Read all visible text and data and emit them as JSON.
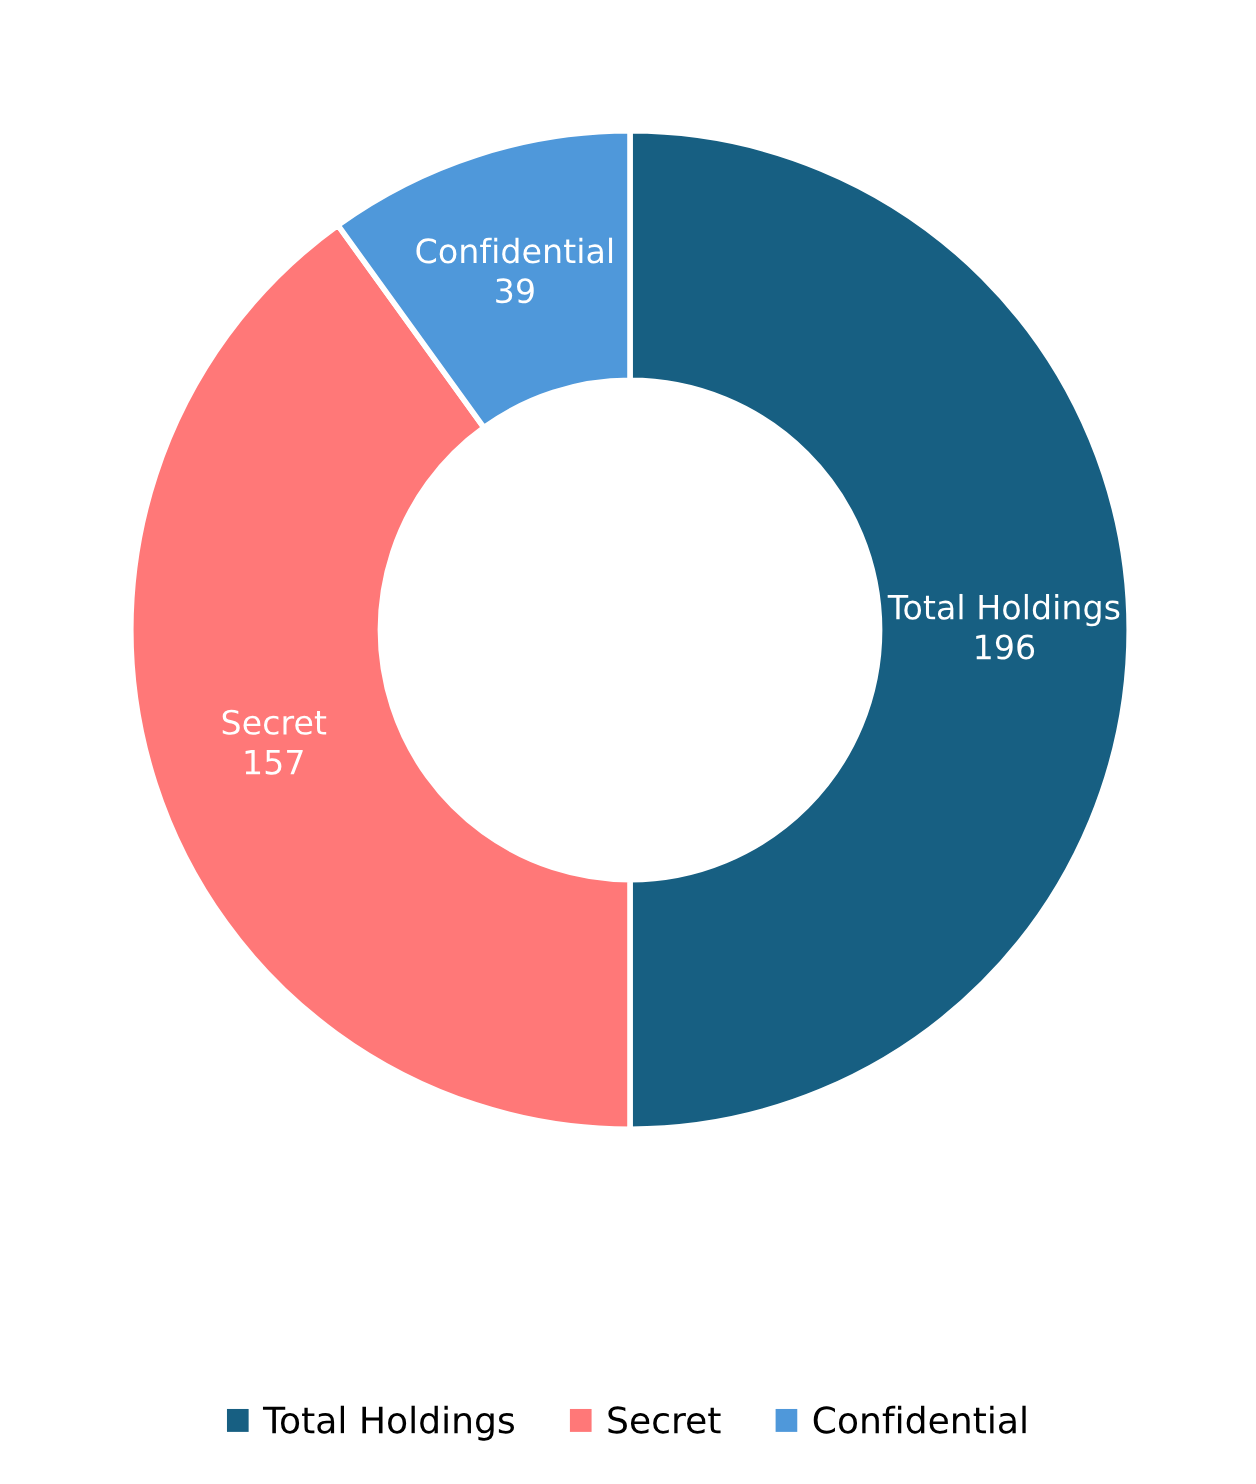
{
  "chart_data": {
    "type": "donut",
    "categories": [
      "Total Holdings",
      "Secret",
      "Confidential"
    ],
    "values": [
      196,
      157,
      39
    ],
    "colors": [
      "#175f82",
      "#ff7878",
      "#4f98da"
    ],
    "data_labels": true,
    "legend": "bottom"
  }
}
